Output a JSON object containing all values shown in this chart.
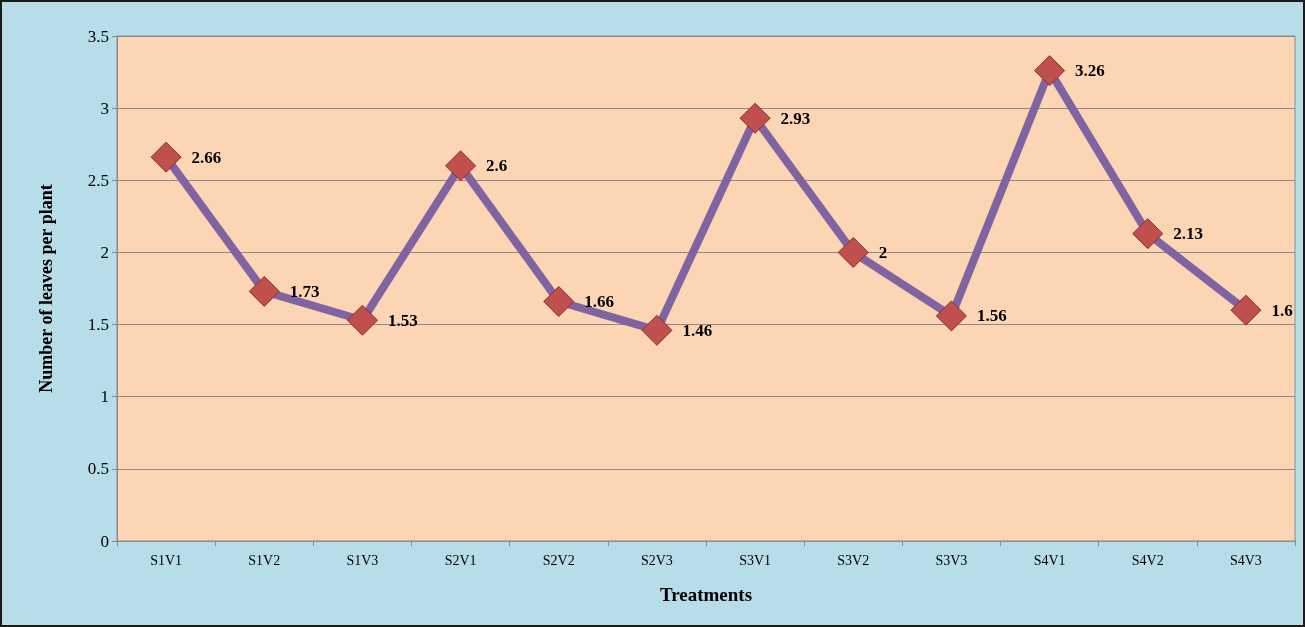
{
  "chart_data": {
    "type": "line",
    "xlabel": "Treatments",
    "ylabel": "Number of leaves per plant",
    "categories": [
      "S1V1",
      "S1V2",
      "S1V3",
      "S2V1",
      "S2V2",
      "S2V3",
      "S3V1",
      "S3V2",
      "S3V3",
      "S4V1",
      "S4V2",
      "S4V3"
    ],
    "series": [
      {
        "color": "#8064a2",
        "values": [
          2.66,
          1.73,
          1.53,
          2.6,
          1.66,
          1.46,
          2.93,
          2,
          1.56,
          3.26,
          2.13,
          1.6
        ]
      }
    ],
    "ylim": [
      0,
      3.5
    ],
    "yticks": [
      0,
      0.5,
      1,
      1.5,
      2,
      2.5,
      3,
      3.5
    ],
    "grid": "y",
    "marker": "diamond",
    "line_style": "solid",
    "data_labels": true
  }
}
